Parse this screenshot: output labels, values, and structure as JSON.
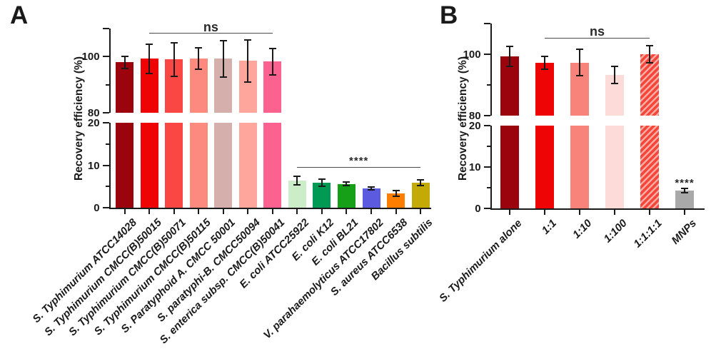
{
  "figure": {
    "background": "#ffffff",
    "axis_color": "#1a1a1a",
    "bracket_line_color": "#4d4d4d"
  },
  "chart_data": [
    {
      "type": "bar",
      "panel": "A",
      "ylabel": "Recovery efficiency (%)",
      "y_axis": {
        "broken": true,
        "lower_range": [
          0,
          20
        ],
        "upper_range": [
          80,
          110
        ],
        "ticks": {
          "upper": [
            {
              "v": 110,
              "label": "",
              "minor": false
            },
            {
              "v": 100,
              "label": "100",
              "minor": false
            },
            {
              "v": 90,
              "label": "",
              "minor": true
            },
            {
              "v": 80,
              "label": "80",
              "minor": false
            }
          ],
          "lower": [
            {
              "v": 20,
              "label": "20",
              "minor": false
            },
            {
              "v": 15,
              "label": "",
              "minor": true
            },
            {
              "v": 10,
              "label": "10",
              "minor": false
            },
            {
              "v": 5,
              "label": "",
              "minor": true
            },
            {
              "v": 0,
              "label": "0",
              "minor": false
            }
          ]
        }
      },
      "categories": [
        "S. Typhimurium ATCC14028",
        "S. Typhimurium CMCC(B)50015",
        "S. Typhimurium CMCC(B)50071",
        "S. Typhimurium CMCC(B)50115",
        "S. Paratyphoid A. CMCC 50001",
        "S. paratyphi-B. CMCC50094",
        "S. enterica subsp. CMCC(B)50041",
        "E. coli ATCC25922",
        "E. coli K12",
        "E. coli BL21",
        "V. parahaemolyticus ATCC17802",
        "S. aureus ATCC6538",
        "Bacillus subtilis"
      ],
      "values": [
        98.0,
        99.2,
        99.0,
        99.4,
        99.2,
        98.5,
        98.2,
        6.4,
        5.9,
        5.6,
        4.5,
        3.4,
        5.9
      ],
      "errors": [
        2.2,
        5.3,
        6.0,
        3.8,
        6.6,
        7.5,
        4.7,
        1.0,
        0.9,
        0.4,
        0.3,
        0.7,
        0.7
      ],
      "colors": [
        "#9b040c",
        "#ee0404",
        "#fa4743",
        "#fc8a7e",
        "#d4afab",
        "#ffa69c",
        "#fb6290",
        "#cbedc8",
        "#019a55",
        "#16a018",
        "#5c5be0",
        "#fe7f00",
        "#c3aa06"
      ],
      "annotations": [
        {
          "kind": "bracket",
          "text": "ns",
          "from_bar": 1,
          "to_bar": 6
        },
        {
          "kind": "bracket",
          "text": "****",
          "from_bar": 7,
          "to_bar": 12
        }
      ]
    },
    {
      "type": "bar",
      "panel": "B",
      "ylabel": "Recovery efficiency (%)",
      "y_axis": {
        "broken": true,
        "lower_range": [
          0,
          20
        ],
        "upper_range": [
          80,
          110
        ],
        "ticks": {
          "upper": [
            {
              "v": 110,
              "label": "",
              "minor": false
            },
            {
              "v": 100,
              "label": "100",
              "minor": false
            },
            {
              "v": 90,
              "label": "",
              "minor": true
            },
            {
              "v": 80,
              "label": "80",
              "minor": false
            }
          ],
          "lower": [
            {
              "v": 20,
              "label": "20",
              "minor": false
            },
            {
              "v": 15,
              "label": "",
              "minor": true
            },
            {
              "v": 10,
              "label": "10",
              "minor": false
            },
            {
              "v": 5,
              "label": "",
              "minor": true
            },
            {
              "v": 0,
              "label": "0",
              "minor": false
            }
          ]
        }
      },
      "categories": [
        "S. Typhimurium alone",
        "1:1",
        "1:10",
        "1:100",
        "1:1:1:1",
        "MNPs"
      ],
      "values": [
        99.3,
        97.2,
        97.3,
        93.2,
        100.0,
        4.3
      ],
      "errors": [
        3.2,
        2.0,
        4.3,
        2.8,
        2.9,
        0.5
      ],
      "colors": [
        "#9b040c",
        "#ee0404",
        "#f8837b",
        "#fcdbd8",
        "hatch:#f6453a/#fcaca3",
        "#a9a9a9"
      ],
      "annotations": [
        {
          "kind": "bracket",
          "text": "ns",
          "from_bar": 1,
          "to_bar": 4
        },
        {
          "kind": "stars-above-bar",
          "text": "****",
          "bar": 5
        }
      ]
    }
  ]
}
